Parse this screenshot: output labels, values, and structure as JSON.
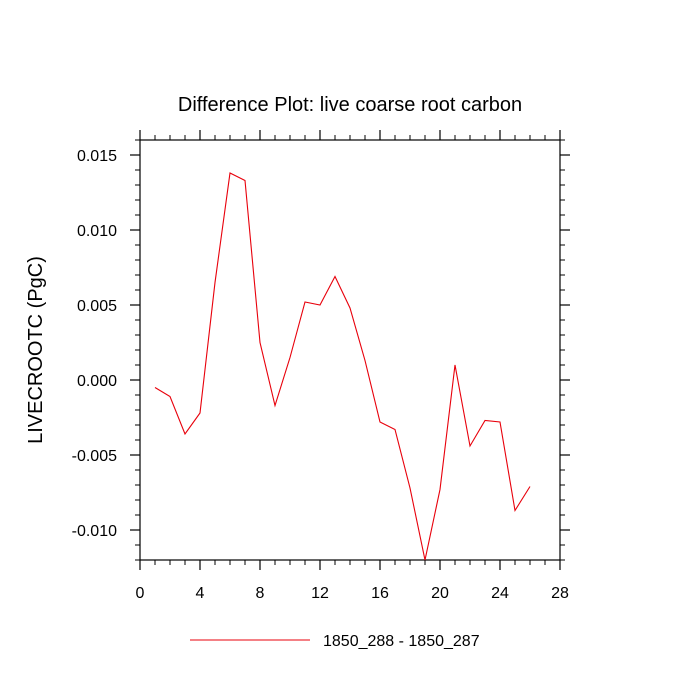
{
  "chart_data": {
    "type": "line",
    "title": "Difference Plot: live coarse root carbon",
    "xlabel": "",
    "ylabel": "LIVECROOTC  (PgC)",
    "xlim": [
      0,
      28
    ],
    "ylim": [
      -0.012,
      0.016
    ],
    "x_ticks": [
      0,
      4,
      8,
      12,
      16,
      20,
      24,
      28
    ],
    "x_tick_labels": [
      "0",
      "4",
      "8",
      "12",
      "16",
      "20",
      "24",
      "28"
    ],
    "y_ticks": [
      -0.01,
      -0.005,
      0.0,
      0.005,
      0.01,
      0.015
    ],
    "y_tick_labels": [
      "-0.010",
      "-0.005",
      "0.000",
      "0.005",
      "0.010",
      "0.015"
    ],
    "grid": false,
    "legend_position": "bottom",
    "series": [
      {
        "name": "1850_288 - 1850_287",
        "color": "#e8000b",
        "x": [
          1,
          2,
          3,
          4,
          5,
          6,
          7,
          8,
          9,
          10,
          11,
          12,
          13,
          14,
          15,
          16,
          17,
          18,
          19,
          20,
          21,
          22,
          23,
          24,
          25,
          26
        ],
        "y": [
          -0.0005,
          -0.0011,
          -0.0036,
          -0.0022,
          0.0065,
          0.0138,
          0.0133,
          0.0025,
          -0.0017,
          0.0015,
          0.0052,
          0.005,
          0.0069,
          0.0048,
          0.0013,
          -0.0028,
          -0.0033,
          -0.0072,
          -0.012,
          -0.0073,
          0.001,
          -0.0044,
          -0.0027,
          -0.0028,
          -0.0087,
          -0.0071
        ]
      }
    ]
  }
}
